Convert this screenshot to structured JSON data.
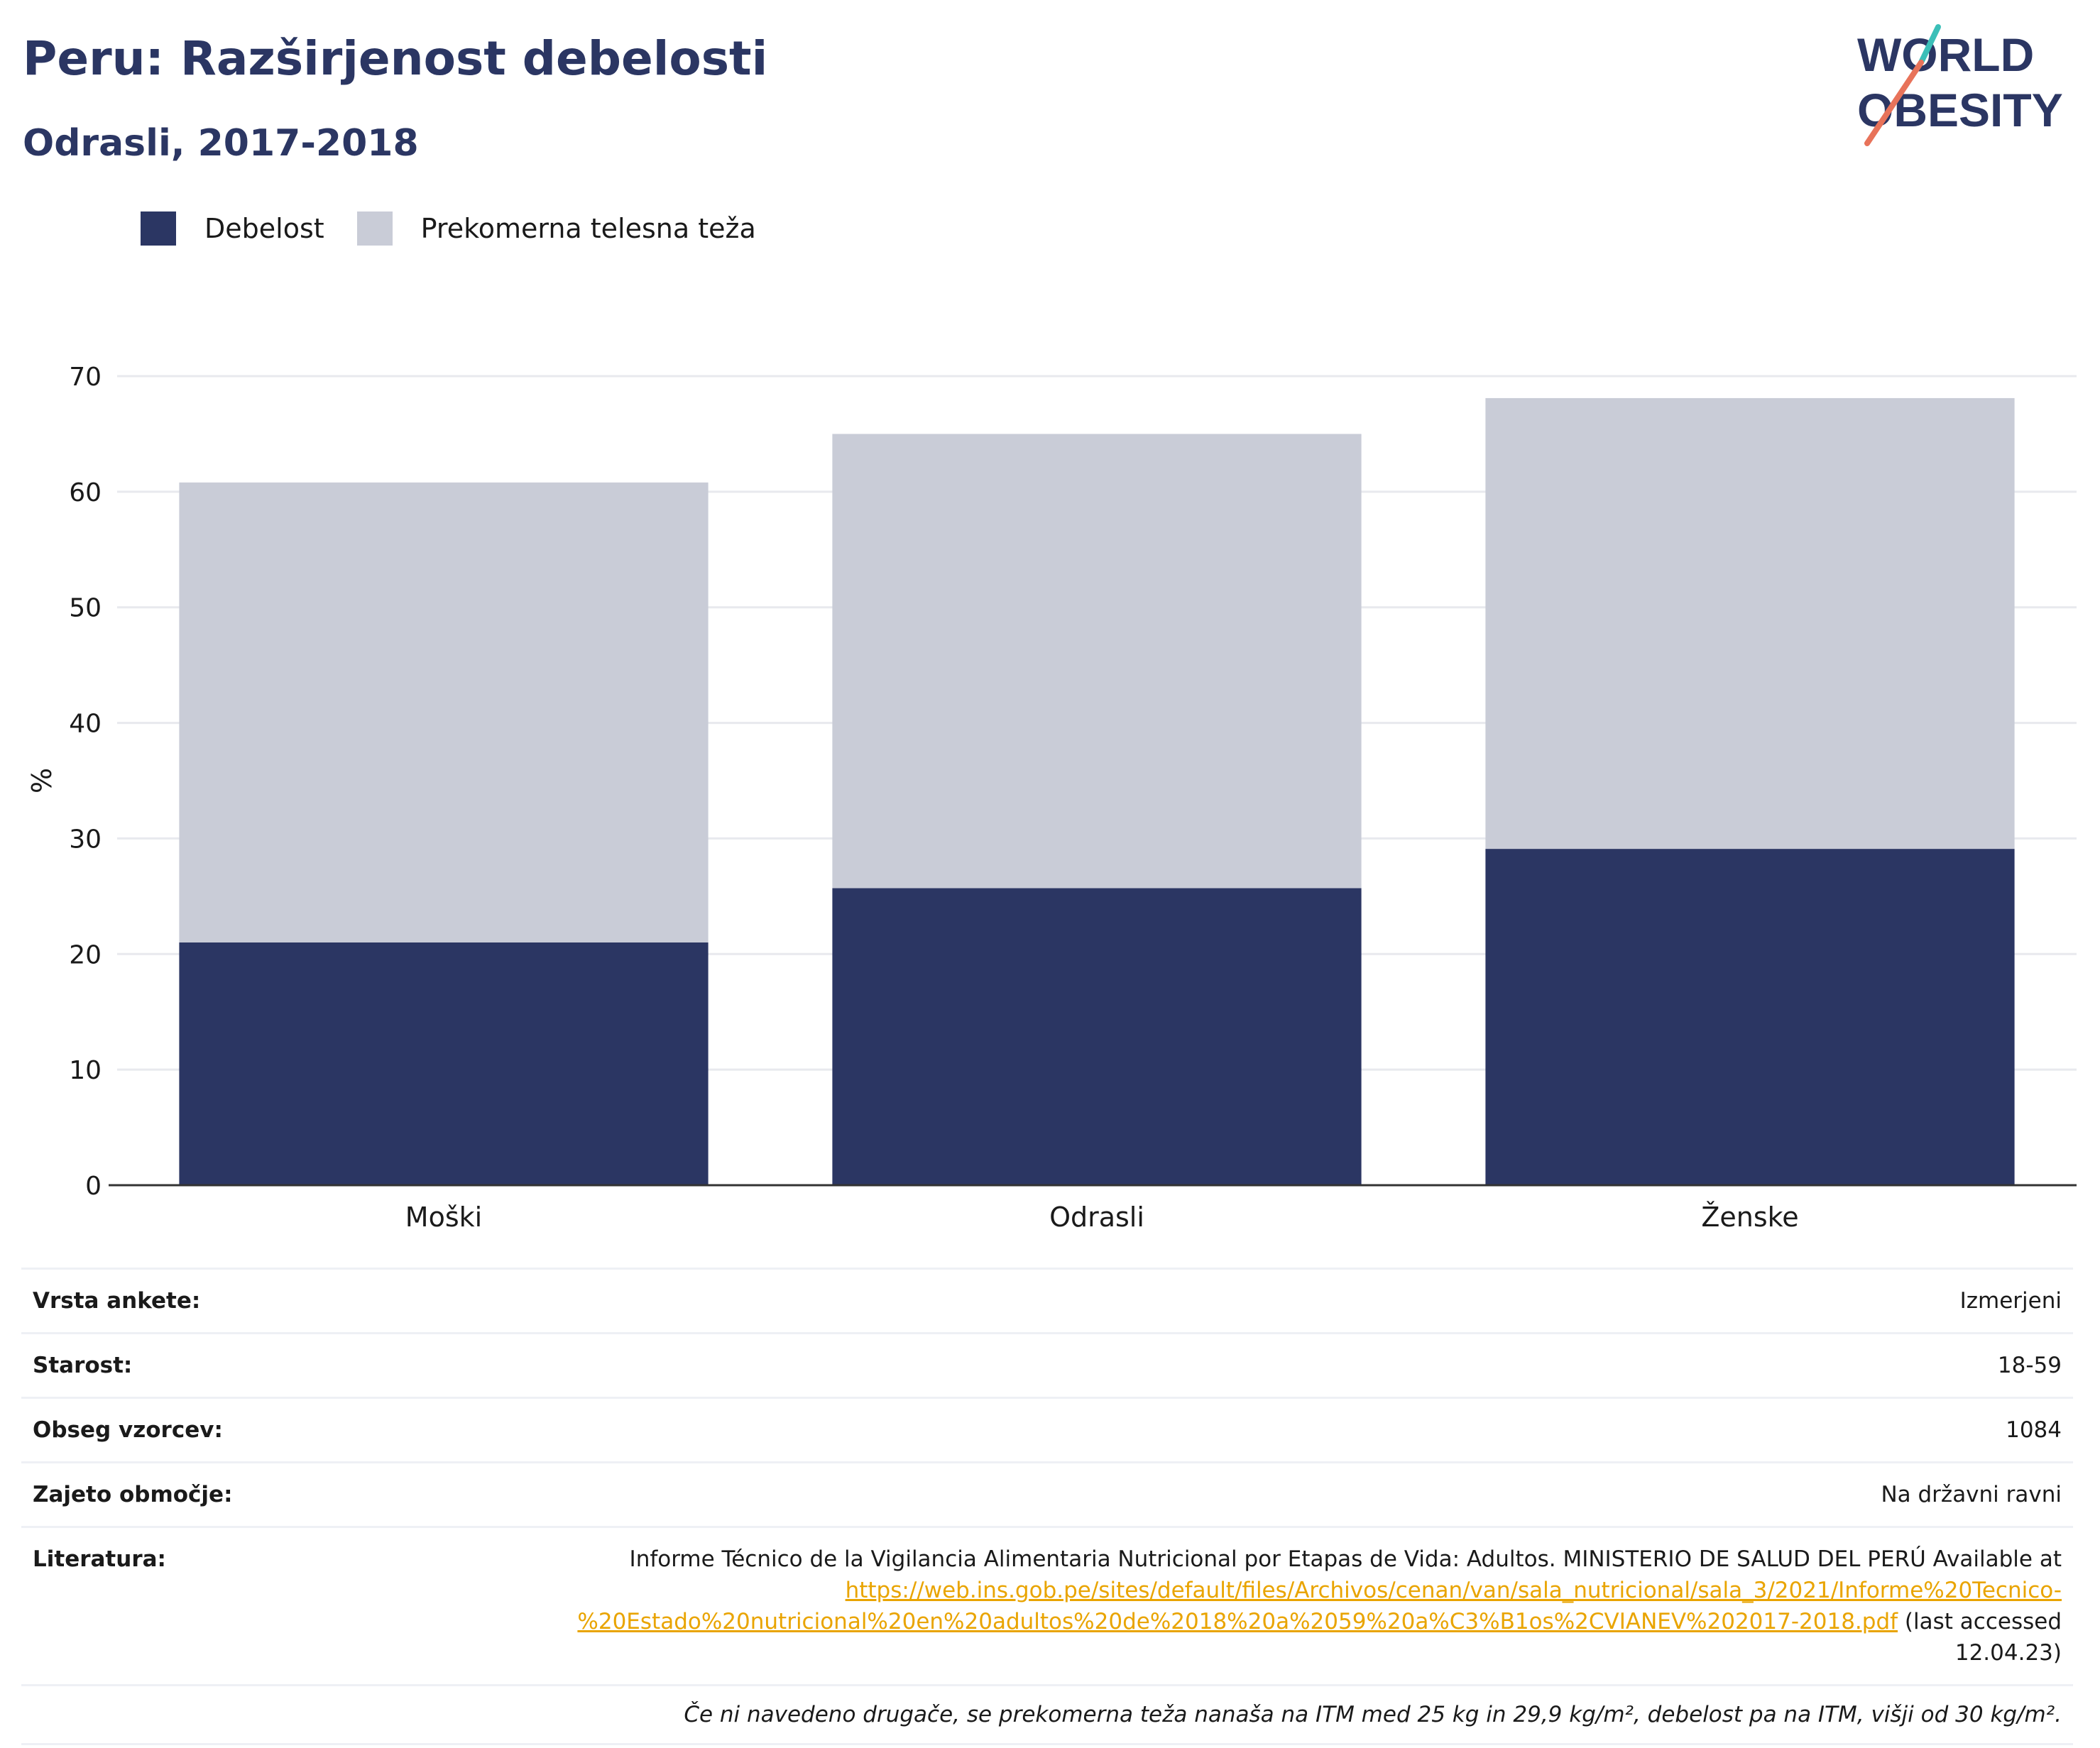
{
  "header": {
    "title": "Peru: Razširjenost debelosti",
    "subtitle": "Odrasli, 2017-2018",
    "logo_line1": "WORLD",
    "logo_line2": "OBESITY"
  },
  "legend": [
    {
      "label": "Debelost",
      "color": "#2b3663"
    },
    {
      "label": "Prekomerna telesna teža",
      "color": "#c9ccd7"
    }
  ],
  "chart_data": {
    "type": "bar",
    "stacked": true,
    "categories": [
      "Moški",
      "Odrasli",
      "Ženske"
    ],
    "series": [
      {
        "name": "Debelost",
        "values": [
          21.0,
          25.7,
          29.1
        ],
        "color": "#2b3663"
      },
      {
        "name": "Prekomerna telesna teža",
        "values": [
          39.8,
          39.3,
          39.0
        ],
        "color": "#c9ccd7"
      }
    ],
    "ylabel": "%",
    "ylim": [
      0,
      70
    ],
    "yticks": [
      0,
      10,
      20,
      30,
      40,
      50,
      60,
      70
    ],
    "grid": true,
    "legend_position": "top-left"
  },
  "meta": [
    {
      "key": "Vrsta ankete:",
      "value": "Izmerjeni"
    },
    {
      "key": "Starost:",
      "value": "18-59"
    },
    {
      "key": "Obseg vzorcev:",
      "value": "1084"
    },
    {
      "key": "Zajeto območje:",
      "value": "Na državni ravni"
    }
  ],
  "literature": {
    "key": "Literatura:",
    "text_before": "Informe Técnico de la Vigilancia Alimentaria Nutricional por Etapas de Vida: Adultos. MINISTERIO DE SALUD DEL PERÚ Available at",
    "link_text": "https://web.ins.gob.pe/sites/default/files/Archivos/cenan/van/sala_nutricional/sala_3/2021/Informe%20Tecnico-%20Estado%20nutricional%20en%20adultos%20de%2018%20a%2059%20a%C3%B1os%2CVIANEV%202017-2018.pdf",
    "text_after": "(last accessed 12.04.23)"
  },
  "footnote": "Če ni navedeno drugače, se prekomerna teža nanaša na ITM med 25 kg in 29,9 kg/m², debelost pa na ITM, višji od 30 kg/m²."
}
